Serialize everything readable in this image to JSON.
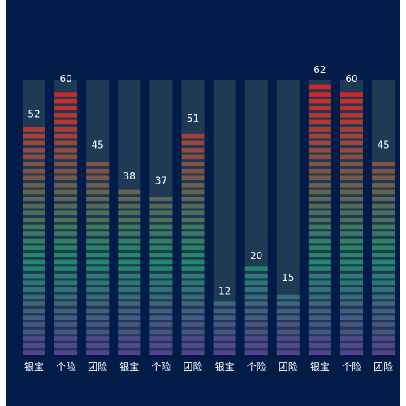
{
  "chart_data": {
    "type": "bar",
    "style": "segmented-gauge",
    "categories": [
      "银宝",
      "个险",
      "团险",
      "银宝",
      "个险",
      "团险",
      "银宝",
      "个险",
      "团险",
      "银宝",
      "个险",
      "团险"
    ],
    "values": [
      52,
      60,
      45,
      38,
      37,
      51,
      12,
      20,
      15,
      62,
      60,
      45
    ],
    "ylim": [
      0,
      62
    ],
    "title": "",
    "xlabel": "",
    "ylabel": "",
    "grid": false,
    "colors": {
      "background": "#021c4a",
      "track": "#1f3a55",
      "axis": "#ffffff",
      "gradient_bottom": "#5a3f8f",
      "gradient_mid": "#1f8a6a",
      "gradient_top": "#e01e1e"
    }
  }
}
